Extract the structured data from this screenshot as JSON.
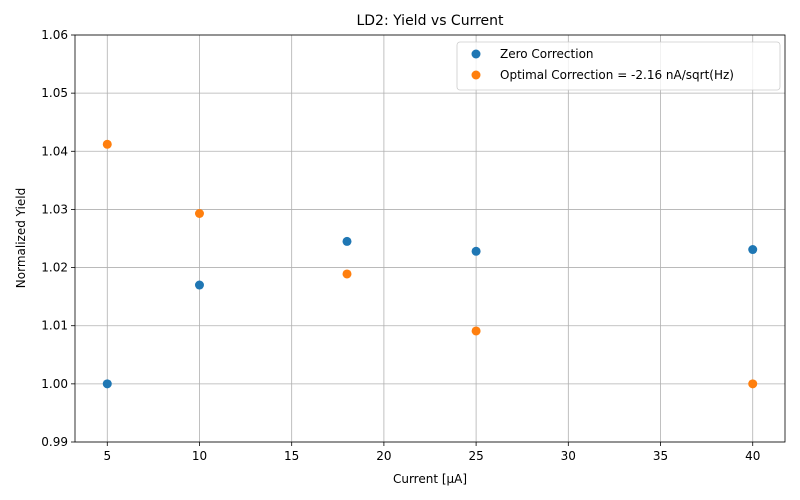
{
  "chart_data": {
    "type": "scatter",
    "title": "LD2: Yield vs Current",
    "xlabel": "Current [µA]",
    "ylabel": "Normalized Yield",
    "xlim": [
      3.25,
      41.75
    ],
    "ylim": [
      0.99,
      1.06
    ],
    "xticks": [
      5,
      10,
      15,
      20,
      25,
      30,
      35,
      40
    ],
    "xtick_labels": [
      "5",
      "10",
      "15",
      "20",
      "25",
      "30",
      "35",
      "40"
    ],
    "yticks": [
      0.99,
      1.0,
      1.01,
      1.02,
      1.03,
      1.04,
      1.05,
      1.06
    ],
    "ytick_labels": [
      "0.99",
      "1.00",
      "1.01",
      "1.02",
      "1.03",
      "1.04",
      "1.05",
      "1.06"
    ],
    "grid": true,
    "legend_position": "top-right",
    "series": [
      {
        "name": "Zero Correction",
        "color": "#1f77b4",
        "x": [
          5,
          10,
          18,
          25,
          40
        ],
        "y": [
          1.0,
          1.017,
          1.0245,
          1.0228,
          1.0231
        ]
      },
      {
        "name": "Optimal Correction = -2.16 nA/sqrt(Hz)",
        "color": "#ff7f0e",
        "x": [
          5,
          10,
          18,
          25,
          40
        ],
        "y": [
          1.0412,
          1.0293,
          1.0189,
          1.0091,
          1.0
        ]
      }
    ]
  }
}
